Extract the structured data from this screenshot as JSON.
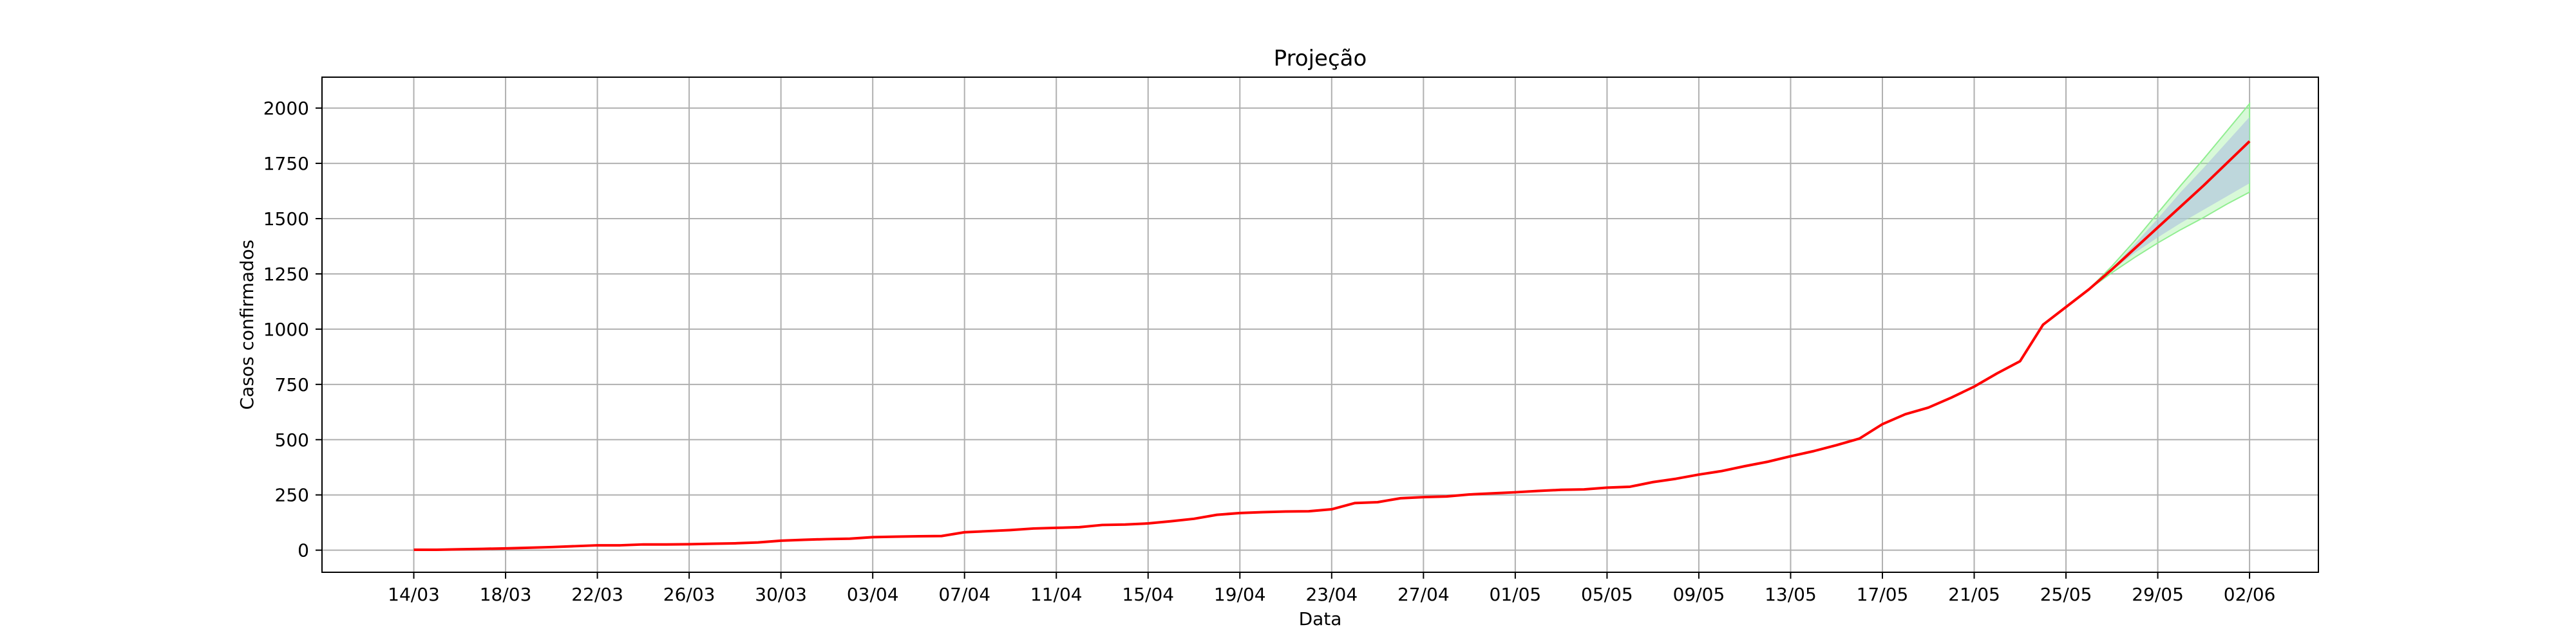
{
  "chart_data": {
    "type": "line",
    "title": "Projeção",
    "xlabel": "Data",
    "ylabel": "Casos confirmados",
    "x_range_days": [
      -4,
      83
    ],
    "ylim": [
      -100,
      2140
    ],
    "y_ticks": [
      0,
      250,
      500,
      750,
      1000,
      1250,
      1500,
      1750,
      2000
    ],
    "x_ticks": [
      {
        "day": 0,
        "label": "14/03"
      },
      {
        "day": 4,
        "label": "18/03"
      },
      {
        "day": 8,
        "label": "22/03"
      },
      {
        "day": 12,
        "label": "26/03"
      },
      {
        "day": 16,
        "label": "30/03"
      },
      {
        "day": 20,
        "label": "03/04"
      },
      {
        "day": 24,
        "label": "07/04"
      },
      {
        "day": 28,
        "label": "11/04"
      },
      {
        "day": 32,
        "label": "15/04"
      },
      {
        "day": 36,
        "label": "19/04"
      },
      {
        "day": 40,
        "label": "23/04"
      },
      {
        "day": 44,
        "label": "27/04"
      },
      {
        "day": 48,
        "label": "01/05"
      },
      {
        "day": 52,
        "label": "05/05"
      },
      {
        "day": 56,
        "label": "09/05"
      },
      {
        "day": 60,
        "label": "13/05"
      },
      {
        "day": 64,
        "label": "17/05"
      },
      {
        "day": 68,
        "label": "21/05"
      },
      {
        "day": 72,
        "label": "25/05"
      },
      {
        "day": 76,
        "label": "29/05"
      },
      {
        "day": 80,
        "label": "02/06"
      }
    ],
    "grid": true,
    "colors": {
      "line": "#ff0000",
      "band_inner": "#b0c4de",
      "band_outer": "#90ee90"
    },
    "series": [
      {
        "values": [
          2,
          2,
          4,
          6,
          8,
          11,
          14,
          18,
          22,
          22,
          26,
          26,
          27,
          29,
          31,
          35,
          43,
          47,
          50,
          52,
          59,
          61,
          63,
          64,
          81,
          86,
          91,
          98,
          101,
          104,
          114,
          116,
          121,
          131,
          142,
          160,
          168,
          172,
          175,
          176,
          185,
          213,
          217,
          235,
          240,
          243,
          252,
          257,
          262,
          268,
          273,
          275,
          283,
          287,
          308,
          323,
          342,
          358,
          380,
          400,
          425,
          448,
          475,
          505,
          570,
          615,
          645,
          690,
          740,
          800,
          855,
          1020,
          1100,
          1180,
          1270,
          1365,
          1460,
          1555,
          1650,
          1750,
          1850
        ]
      },
      {
        "start_day": 73,
        "band_inner": {
          "low": [
            1180,
            1265,
            1345,
            1415,
            1480,
            1540,
            1600,
            1660
          ],
          "high": [
            1180,
            1275,
            1385,
            1500,
            1620,
            1730,
            1845,
            1960
          ]
        },
        "band_outer": {
          "low": [
            1180,
            1255,
            1325,
            1390,
            1450,
            1505,
            1565,
            1620
          ],
          "high": [
            1180,
            1285,
            1400,
            1525,
            1650,
            1770,
            1895,
            2020
          ]
        }
      }
    ]
  }
}
